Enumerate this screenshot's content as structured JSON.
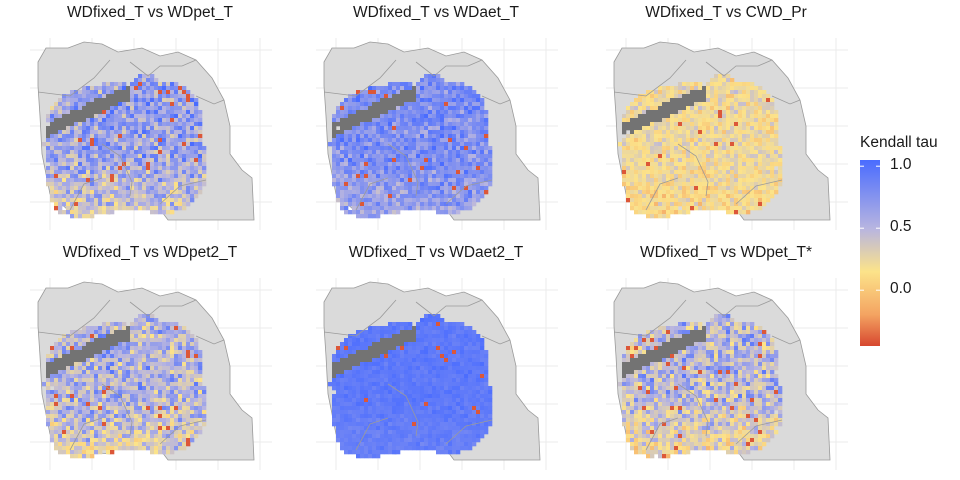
{
  "panels": [
    {
      "title": "WDfixed_T vs WDpet_T",
      "mean": 0.72,
      "spread": 0.3,
      "dry_bias": 0.3,
      "gray_patch": true
    },
    {
      "title": "WDfixed_T vs WDaet_T",
      "mean": 0.85,
      "spread": 0.2,
      "dry_bias": 0.15,
      "gray_patch": true
    },
    {
      "title": "WDfixed_T vs CWD_Pr",
      "mean": 0.3,
      "spread": 0.22,
      "dry_bias": 0.1,
      "gray_patch": true
    },
    {
      "title": "WDfixed_T vs WDpet2_T",
      "mean": 0.62,
      "spread": 0.33,
      "dry_bias": 0.25,
      "gray_patch": true
    },
    {
      "title": "WDfixed_T vs WDaet2_T",
      "mean": 0.97,
      "spread": 0.06,
      "dry_bias": 0.05,
      "gray_patch": true
    },
    {
      "title": "WDfixed_T vs WDpet_T*",
      "mean": 0.58,
      "spread": 0.33,
      "dry_bias": 0.3,
      "gray_patch": true
    }
  ],
  "legend": {
    "title": "Kendall tau",
    "min": -0.45,
    "max": 1.05,
    "ticks": [
      {
        "label": "1.0",
        "value": 1.0
      },
      {
        "label": "0.5",
        "value": 0.5
      },
      {
        "label": "0.0",
        "value": 0.0
      }
    ]
  },
  "colors": {
    "low": "#d7472f",
    "mid_low": "#f4a462",
    "mid": "#fce38a",
    "mid_high": "#b8b5e0",
    "high": "#4a6cff",
    "land": "#dadada",
    "masked": "#737373",
    "border": "#9a9a9a",
    "grid": "#ebebeb"
  }
}
